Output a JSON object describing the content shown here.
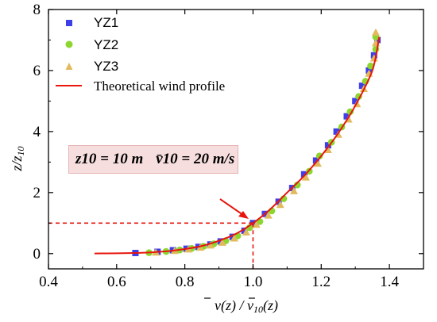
{
  "chart_data": {
    "type": "scatter",
    "xlabel": "v̄(z) / v̄10(z)",
    "ylabel": "z/z10",
    "xlim": [
      0.4,
      1.5
    ],
    "ylim": [
      -0.5,
      8
    ],
    "x_ticks": [
      "0.4",
      "0.6",
      "0.8",
      "1.0",
      "1.2",
      "1.4"
    ],
    "y_ticks": [
      "0",
      "2",
      "4",
      "6",
      "8"
    ],
    "x_tick_values": [
      0.4,
      0.6,
      0.8,
      1.0,
      1.2,
      1.4
    ],
    "y_tick_values": [
      0,
      2,
      4,
      6,
      8
    ],
    "legend_position": "top-left",
    "grid": false,
    "series": [
      {
        "name": "YZ1",
        "marker": "square",
        "color": "#3f3fe8",
        "points": [
          [
            0.655,
            0.02
          ],
          [
            0.72,
            0.06
          ],
          [
            0.765,
            0.11
          ],
          [
            0.805,
            0.16
          ],
          [
            0.84,
            0.22
          ],
          [
            0.875,
            0.3
          ],
          [
            0.905,
            0.4
          ],
          [
            0.94,
            0.55
          ],
          [
            0.975,
            0.75
          ],
          [
            1.0,
            1.0
          ],
          [
            1.035,
            1.3
          ],
          [
            1.075,
            1.7
          ],
          [
            1.115,
            2.15
          ],
          [
            1.15,
            2.6
          ],
          [
            1.185,
            3.05
          ],
          [
            1.22,
            3.55
          ],
          [
            1.245,
            4.0
          ],
          [
            1.275,
            4.5
          ],
          [
            1.3,
            5.0
          ],
          [
            1.32,
            5.5
          ],
          [
            1.34,
            6.0
          ],
          [
            1.355,
            6.5
          ],
          [
            1.365,
            7.0
          ]
        ]
      },
      {
        "name": "YZ2",
        "marker": "circle",
        "color": "#8cd62f",
        "points": [
          [
            0.695,
            0.03
          ],
          [
            0.745,
            0.07
          ],
          [
            0.785,
            0.12
          ],
          [
            0.82,
            0.17
          ],
          [
            0.855,
            0.24
          ],
          [
            0.885,
            0.32
          ],
          [
            0.92,
            0.42
          ],
          [
            0.955,
            0.58
          ],
          [
            0.99,
            0.85
          ],
          [
            1.02,
            1.05
          ],
          [
            1.055,
            1.4
          ],
          [
            1.09,
            1.8
          ],
          [
            1.13,
            2.25
          ],
          [
            1.165,
            2.7
          ],
          [
            1.195,
            3.2
          ],
          [
            1.23,
            3.65
          ],
          [
            1.26,
            4.15
          ],
          [
            1.285,
            4.65
          ],
          [
            1.31,
            5.15
          ],
          [
            1.33,
            5.65
          ],
          [
            1.345,
            6.15
          ],
          [
            1.36,
            6.7
          ],
          [
            1.36,
            7.1
          ]
        ]
      },
      {
        "name": "YZ3",
        "marker": "triangle",
        "color": "#e1ba5c",
        "points": [
          [
            0.715,
            0.04
          ],
          [
            0.77,
            0.09
          ],
          [
            0.81,
            0.14
          ],
          [
            0.845,
            0.2
          ],
          [
            0.875,
            0.27
          ],
          [
            0.91,
            0.36
          ],
          [
            0.945,
            0.5
          ],
          [
            0.98,
            0.7
          ],
          [
            1.01,
            0.95
          ],
          [
            1.045,
            1.25
          ],
          [
            1.08,
            1.6
          ],
          [
            1.12,
            2.05
          ],
          [
            1.155,
            2.5
          ],
          [
            1.19,
            2.95
          ],
          [
            1.22,
            3.4
          ],
          [
            1.25,
            3.9
          ],
          [
            1.28,
            4.4
          ],
          [
            1.305,
            4.9
          ],
          [
            1.325,
            5.4
          ],
          [
            1.34,
            5.9
          ],
          [
            1.355,
            6.4
          ],
          [
            1.36,
            6.9
          ],
          [
            1.36,
            7.25
          ]
        ]
      },
      {
        "name": "Theoretical wind profile",
        "type": "line",
        "color": "#e8150d",
        "points": [
          [
            0.535,
            0.005
          ],
          [
            0.6,
            0.01
          ],
          [
            0.65,
            0.02
          ],
          [
            0.7,
            0.04
          ],
          [
            0.75,
            0.08
          ],
          [
            0.8,
            0.15
          ],
          [
            0.85,
            0.25
          ],
          [
            0.9,
            0.42
          ],
          [
            0.95,
            0.65
          ],
          [
            1.0,
            1.0
          ],
          [
            1.05,
            1.45
          ],
          [
            1.1,
            2.0
          ],
          [
            1.15,
            2.55
          ],
          [
            1.2,
            3.2
          ],
          [
            1.25,
            3.95
          ],
          [
            1.3,
            4.85
          ],
          [
            1.35,
            6.0
          ],
          [
            1.37,
            7.1
          ]
        ]
      }
    ],
    "reference": {
      "x": 1.0,
      "y": 1.0,
      "color": "#e8150d"
    },
    "annotation": {
      "z10_label": "z10 = 10 m",
      "v10_label": "v̄10 = 20 m/s"
    }
  }
}
